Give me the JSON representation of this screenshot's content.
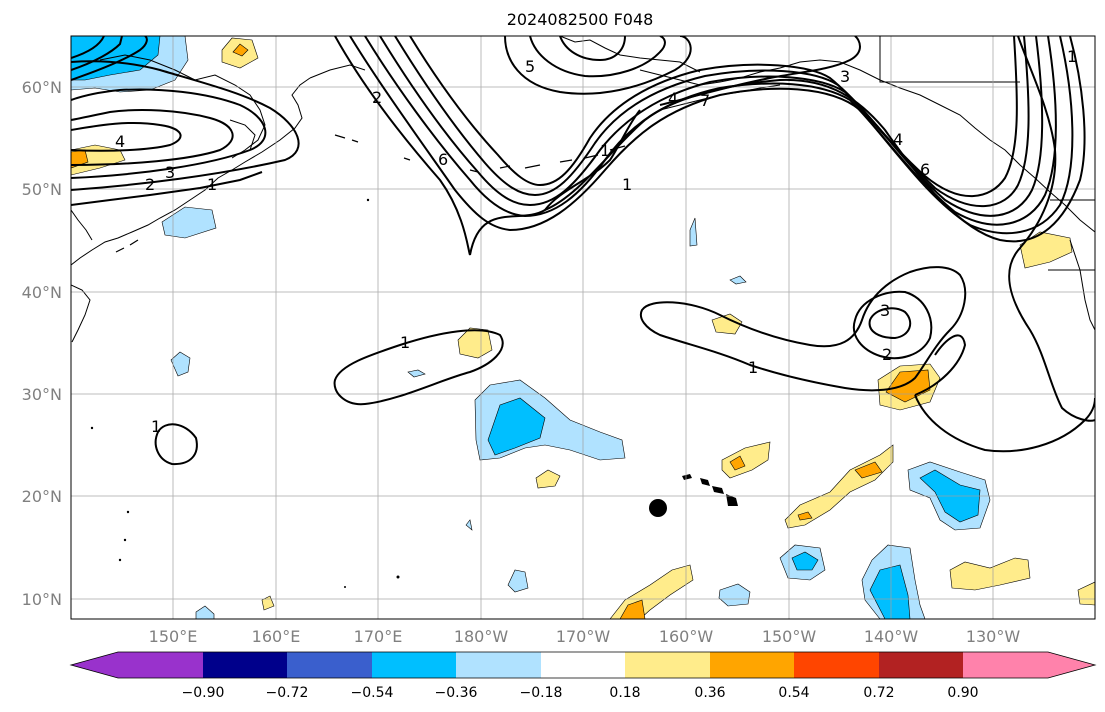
{
  "title": "2024082500 F048",
  "map": {
    "lon_ticks": [
      "150°E",
      "160°E",
      "170°E",
      "180°W",
      "170°W",
      "160°W",
      "150°W",
      "140°W",
      "130°W"
    ],
    "lat_ticks": [
      "60°N",
      "50°N",
      "40°N",
      "30°N",
      "20°N",
      "10°N"
    ],
    "contour_labels": [
      "4",
      "3",
      "2",
      "1",
      "6",
      "5",
      "4",
      "1",
      "3",
      "2",
      "1",
      "6",
      "4",
      "1",
      "1",
      "3",
      "2",
      "1",
      "1",
      "7"
    ],
    "marker": "storm-center-dot"
  },
  "colorbar": {
    "ticks": [
      "−0.90",
      "−0.72",
      "−0.54",
      "−0.36",
      "−0.18",
      "0.18",
      "0.36",
      "0.54",
      "0.72",
      "0.90"
    ],
    "colors": [
      "#9932cc",
      "#00008b",
      "#3a5fcd",
      "#00bfff",
      "#b0e2ff",
      "#ffffff",
      "#ffec8b",
      "#ffa500",
      "#ff4500",
      "#b22222",
      "#ff82ab"
    ]
  }
}
